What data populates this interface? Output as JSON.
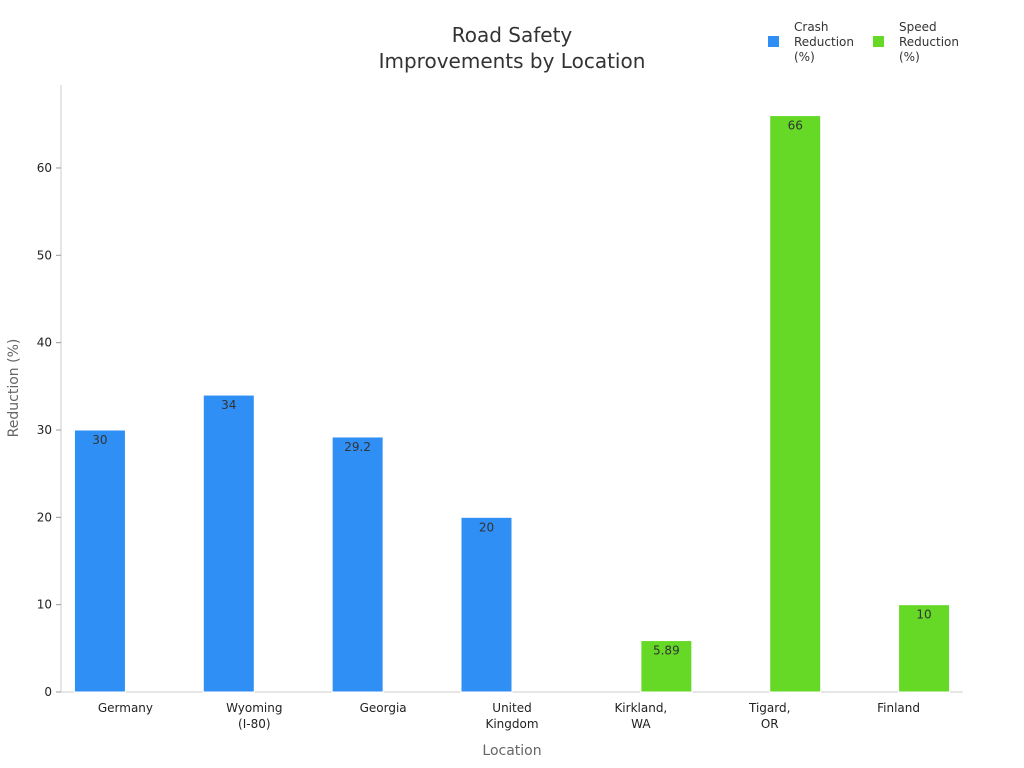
{
  "chart_data": {
    "type": "bar",
    "title": [
      "Road Safety",
      "Improvements by Location"
    ],
    "xlabel": "Location",
    "ylabel": "Reduction (%)",
    "ylim": [
      0,
      69.5
    ],
    "yticks": [
      0,
      10,
      20,
      30,
      40,
      50,
      60
    ],
    "grid": false,
    "legend_position": "top-right",
    "categories": [
      [
        "Germany"
      ],
      [
        "Wyoming",
        "(I-80)"
      ],
      [
        "Georgia"
      ],
      [
        "United",
        "Kingdom"
      ],
      [
        "Kirkland,",
        "WA"
      ],
      [
        "Tigard,",
        "OR"
      ],
      [
        "Finland"
      ]
    ],
    "series": [
      {
        "name": [
          "Crash",
          "Reduction",
          "(%)"
        ],
        "color": "#2f8ff5",
        "values": [
          30,
          34,
          29.2,
          20,
          null,
          null,
          null
        ],
        "labels": [
          "30",
          "34",
          "29.2",
          "20",
          null,
          null,
          null
        ]
      },
      {
        "name": [
          "Speed",
          "Reduction",
          "(%)"
        ],
        "color": "#66d926",
        "values": [
          null,
          null,
          null,
          null,
          5.89,
          66,
          10
        ],
        "labels": [
          null,
          null,
          null,
          null,
          "5.89",
          "66",
          "10"
        ]
      }
    ]
  }
}
